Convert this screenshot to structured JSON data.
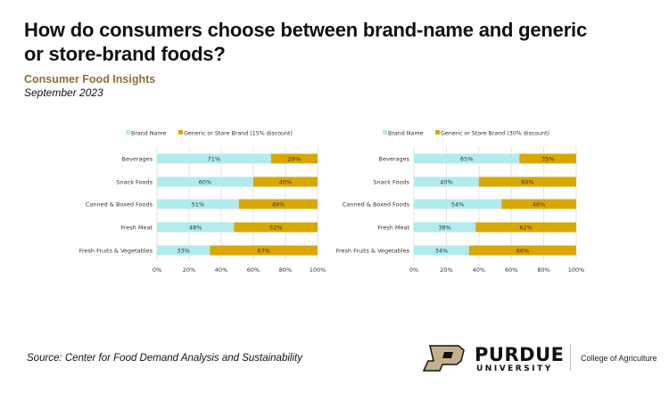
{
  "header": {
    "title": "How do consumers choose between brand-name and generic or store-brand foods?",
    "subtitle": "Consumer Food Insights",
    "date": "September 2023"
  },
  "footer": {
    "source": "Source:  Center for Food Demand Analysis and Sustainability",
    "logo_text": "PURDUE UNIVERSITY",
    "college": "College of Agriculture"
  },
  "colors": {
    "brand": "#b2ebee",
    "generic": "#d9a800",
    "accent": "#8e6f3e"
  },
  "chart_data": [
    {
      "type": "bar",
      "stacked": true,
      "orientation": "horizontal",
      "categories": [
        "Beverages",
        "Snack Foods",
        "Canned & Boxed Foods",
        "Fresh Meat",
        "Fresh Fruits & Vegetables"
      ],
      "series": [
        {
          "name": "Brand Name",
          "values": [
            71,
            60,
            51,
            48,
            33
          ]
        },
        {
          "name": "Generic or Store Brand (15% discount)",
          "values": [
            29,
            40,
            49,
            52,
            67
          ]
        }
      ],
      "xticks": [
        "0%",
        "20%",
        "40%",
        "60%",
        "80%",
        "100%"
      ],
      "xlim": [
        0,
        100
      ],
      "legend": "top",
      "grid": true
    },
    {
      "type": "bar",
      "stacked": true,
      "orientation": "horizontal",
      "categories": [
        "Beverages",
        "Snack Foods",
        "Canned & Boxed Foods",
        "Fresh Meat",
        "Fresh Fruits & Vegetables"
      ],
      "series": [
        {
          "name": "Brand Name",
          "values": [
            65,
            40,
            54,
            38,
            34
          ]
        },
        {
          "name": "Generic or Store Brand (30% discount)",
          "values": [
            35,
            60,
            46,
            62,
            66
          ]
        }
      ],
      "xticks": [
        "0%",
        "20%",
        "40%",
        "60%",
        "80%",
        "100%"
      ],
      "xlim": [
        0,
        100
      ],
      "legend": "top",
      "grid": true
    }
  ]
}
